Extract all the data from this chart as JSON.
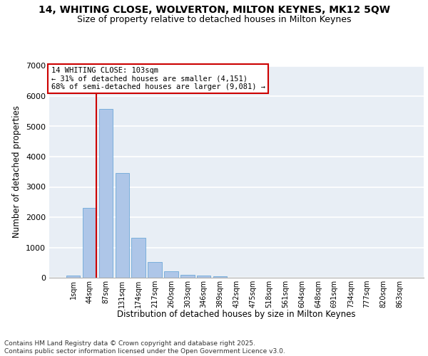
{
  "title_line1": "14, WHITING CLOSE, WOLVERTON, MILTON KEYNES, MK12 5QW",
  "title_line2": "Size of property relative to detached houses in Milton Keynes",
  "xlabel": "Distribution of detached houses by size in Milton Keynes",
  "ylabel": "Number of detached properties",
  "categories": [
    "1sqm",
    "44sqm",
    "87sqm",
    "131sqm",
    "174sqm",
    "217sqm",
    "260sqm",
    "303sqm",
    "346sqm",
    "389sqm",
    "432sqm",
    "475sqm",
    "518sqm",
    "561sqm",
    "604sqm",
    "648sqm",
    "691sqm",
    "734sqm",
    "777sqm",
    "820sqm",
    "863sqm"
  ],
  "values": [
    80,
    2310,
    5580,
    3450,
    1320,
    520,
    210,
    105,
    65,
    40,
    0,
    0,
    0,
    0,
    0,
    0,
    0,
    0,
    0,
    0,
    0
  ],
  "bar_color": "#aec6e8",
  "bar_edge_color": "#5a9fd4",
  "vline_color": "#cc0000",
  "annotation_text": "14 WHITING CLOSE: 103sqm\n← 31% of detached houses are smaller (4,151)\n68% of semi-detached houses are larger (9,081) →",
  "ylim_max": 7000,
  "yticks": [
    0,
    1000,
    2000,
    3000,
    4000,
    5000,
    6000,
    7000
  ],
  "bg_color": "#e8eef5",
  "grid_color": "white",
  "footer": "Contains HM Land Registry data © Crown copyright and database right 2025.\nContains public sector information licensed under the Open Government Licence v3.0."
}
